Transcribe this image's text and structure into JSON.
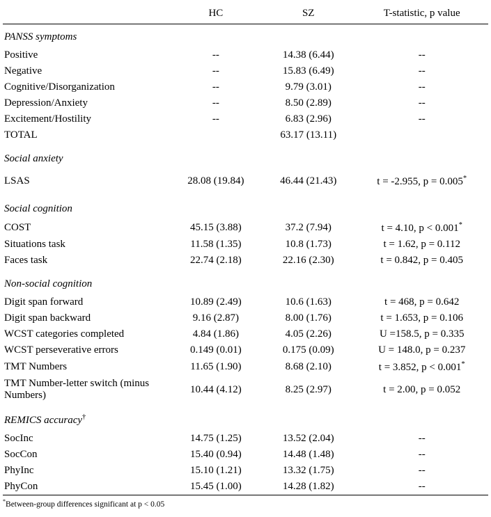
{
  "headers": {
    "label": "",
    "hc": "HC",
    "sz": "SZ",
    "stat": "T-statistic, p value"
  },
  "sections": {
    "panss": "PANSS symptoms",
    "social_anxiety": "Social anxiety",
    "social_cognition": "Social cognition",
    "non_social_cognition": "Non-social cognition",
    "remics": "REMICS accuracy"
  },
  "rows": {
    "positive": {
      "label": "Positive",
      "hc": "--",
      "sz": "14.38 (6.44)",
      "stat": "--"
    },
    "negative": {
      "label": "Negative",
      "hc": "--",
      "sz": "15.83 (6.49)",
      "stat": "--"
    },
    "cogdis": {
      "label": "Cognitive/Disorganization",
      "hc": "--",
      "sz": "9.79 (3.01)",
      "stat": "--"
    },
    "depanx": {
      "label": "Depression/Anxiety",
      "hc": "--",
      "sz": "8.50 (2.89)",
      "stat": "--"
    },
    "excite": {
      "label": "Excitement/Hostility",
      "hc": "--",
      "sz": "6.83 (2.96)",
      "stat": "--"
    },
    "total": {
      "label": "TOTAL",
      "hc": "",
      "sz": "63.17 (13.11)",
      "stat": ""
    },
    "lsas": {
      "label": "LSAS",
      "hc": "28.08 (19.84)",
      "sz": "46.44 (21.43)",
      "stat": "t = -2.955, p = 0.005"
    },
    "lsas_sup": "*",
    "cost": {
      "label": "COST",
      "hc": "45.15 (3.88)",
      "sz": "37.2 (7.94)",
      "stat": "t = 4.10, p < 0.001"
    },
    "cost_sup": "*",
    "situations": {
      "label": "Situations task",
      "hc": "11.58 (1.35)",
      "sz": "10.8 (1.73)",
      "stat": "t = 1.62, p = 0.112"
    },
    "faces": {
      "label": "Faces task",
      "hc": "22.74 (2.18)",
      "sz": "22.16 (2.30)",
      "stat": "t = 0.842, p = 0.405"
    },
    "digitfwd": {
      "label": "Digit span forward",
      "hc": "10.89 (2.49)",
      "sz": "10.6 (1.63)",
      "stat": "t = 468, p = 0.642"
    },
    "digitbwd": {
      "label": "Digit span backward",
      "hc": "9.16 (2.87)",
      "sz": "8.00 (1.76)",
      "stat": "t = 1.653, p = 0.106"
    },
    "wcstcat": {
      "label": "WCST categories completed",
      "hc": "4.84 (1.86)",
      "sz": "4.05 (2.26)",
      "stat": "U =158.5, p = 0.335"
    },
    "wcstper": {
      "label": "WCST perseverative errors",
      "hc": "0.149 (0.01)",
      "sz": "0.175 (0.09)",
      "stat": "U = 148.0, p = 0.237"
    },
    "tmtnum": {
      "label": "TMT Numbers",
      "hc": "11.65 (1.90)",
      "sz": "8.68 (2.10)",
      "stat": "t = 3.852, p < 0.001"
    },
    "tmtnum_sup": "*",
    "tmtswitch": {
      "label": "TMT Number-letter switch (minus Numbers)",
      "hc": "10.44 (4.12)",
      "sz": "8.25 (2.97)",
      "stat": "t = 2.00, p = 0.052"
    },
    "socinc": {
      "label": "SocInc",
      "hc": "14.75 (1.25)",
      "sz": "13.52 (2.04)",
      "stat": "--"
    },
    "soccon": {
      "label": "SocCon",
      "hc": "15.40 (0.94)",
      "sz": "14.48 (1.48)",
      "stat": "--"
    },
    "phyinc": {
      "label": "PhyInc",
      "hc": "15.10 (1.21)",
      "sz": "13.32 (1.75)",
      "stat": "--"
    },
    "phycon": {
      "label": "PhyCon",
      "hc": "15.45 (1.00)",
      "sz": "14.28 (1.82)",
      "stat": "--"
    }
  },
  "remics_dagger": "†",
  "footnote_star": "*",
  "footnote_text": "Between-group differences significant at p < 0.05"
}
